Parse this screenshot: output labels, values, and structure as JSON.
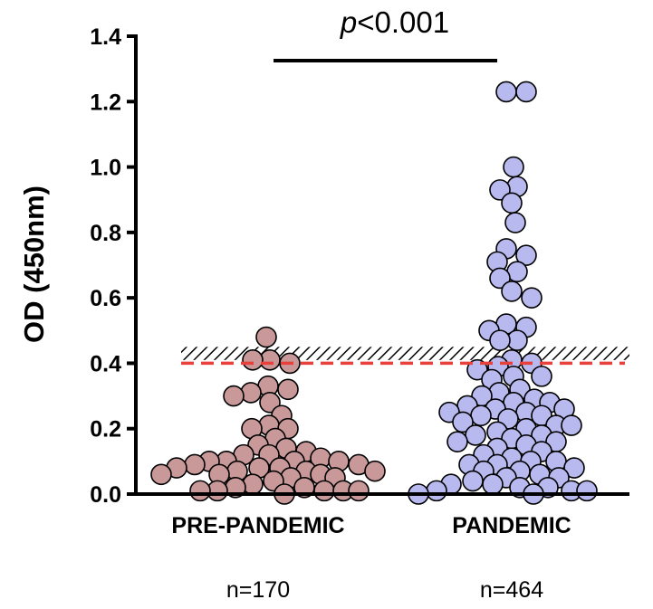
{
  "chart_data": {
    "type": "scatter",
    "ylabel": "OD (450nm)",
    "ylim": [
      0,
      1.4
    ],
    "yticks": [
      "0.0",
      "0.2",
      "0.4",
      "0.6",
      "0.8",
      "1.0",
      "1.2",
      "1.4"
    ],
    "cutoff": 0.4,
    "cutoff_band": [
      0.41,
      0.45
    ],
    "significance": {
      "p_italic": "p",
      "p_rest": "<0.001"
    },
    "groups": [
      {
        "name": "PRE-PANDEMIC",
        "n_label": "n=170",
        "color": "#c9999a",
        "values": [
          0.48,
          0.41,
          0.4,
          0.41,
          0.33,
          0.32,
          0.31,
          0.3,
          0.28,
          0.24,
          0.21,
          0.2,
          0.2,
          0.17,
          0.15,
          0.14,
          0.13,
          0.12,
          0.12,
          0.11,
          0.1,
          0.1,
          0.1,
          0.1,
          0.09,
          0.09,
          0.08,
          0.08,
          0.08,
          0.07,
          0.07,
          0.07,
          0.06,
          0.06,
          0.06,
          0.05,
          0.05,
          0.04,
          0.03,
          0.02,
          0.02,
          0.01,
          0.01,
          0.01,
          0.01,
          0.01,
          0.0
        ]
      },
      {
        "name": "PANDEMIC",
        "n_label": "n=464",
        "color": "#b8b9ee",
        "values": [
          1.23,
          1.23,
          1.0,
          0.94,
          0.93,
          0.89,
          0.83,
          0.75,
          0.73,
          0.71,
          0.68,
          0.66,
          0.62,
          0.6,
          0.52,
          0.51,
          0.5,
          0.47,
          0.47,
          0.41,
          0.4,
          0.39,
          0.38,
          0.36,
          0.36,
          0.35,
          0.32,
          0.31,
          0.3,
          0.29,
          0.28,
          0.28,
          0.27,
          0.26,
          0.26,
          0.25,
          0.25,
          0.24,
          0.24,
          0.23,
          0.22,
          0.21,
          0.21,
          0.2,
          0.19,
          0.18,
          0.18,
          0.17,
          0.16,
          0.16,
          0.15,
          0.14,
          0.13,
          0.12,
          0.11,
          0.1,
          0.1,
          0.09,
          0.09,
          0.08,
          0.07,
          0.07,
          0.06,
          0.05,
          0.05,
          0.04,
          0.03,
          0.03,
          0.02,
          0.02,
          0.01,
          0.01,
          0.01,
          0.0,
          0.0
        ]
      }
    ]
  }
}
